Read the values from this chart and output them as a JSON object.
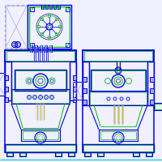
{
  "bg_color": "#f0f0ff",
  "blue": "#0000ee",
  "blue2": "#3333aa",
  "blue3": "#aaaadd",
  "green": "#00bb00",
  "green2": "#22aa22",
  "yellow": "#cccc00",
  "cyan": "#00cccc",
  "figsize": [
    2.0,
    2.0
  ],
  "dpi": 100
}
